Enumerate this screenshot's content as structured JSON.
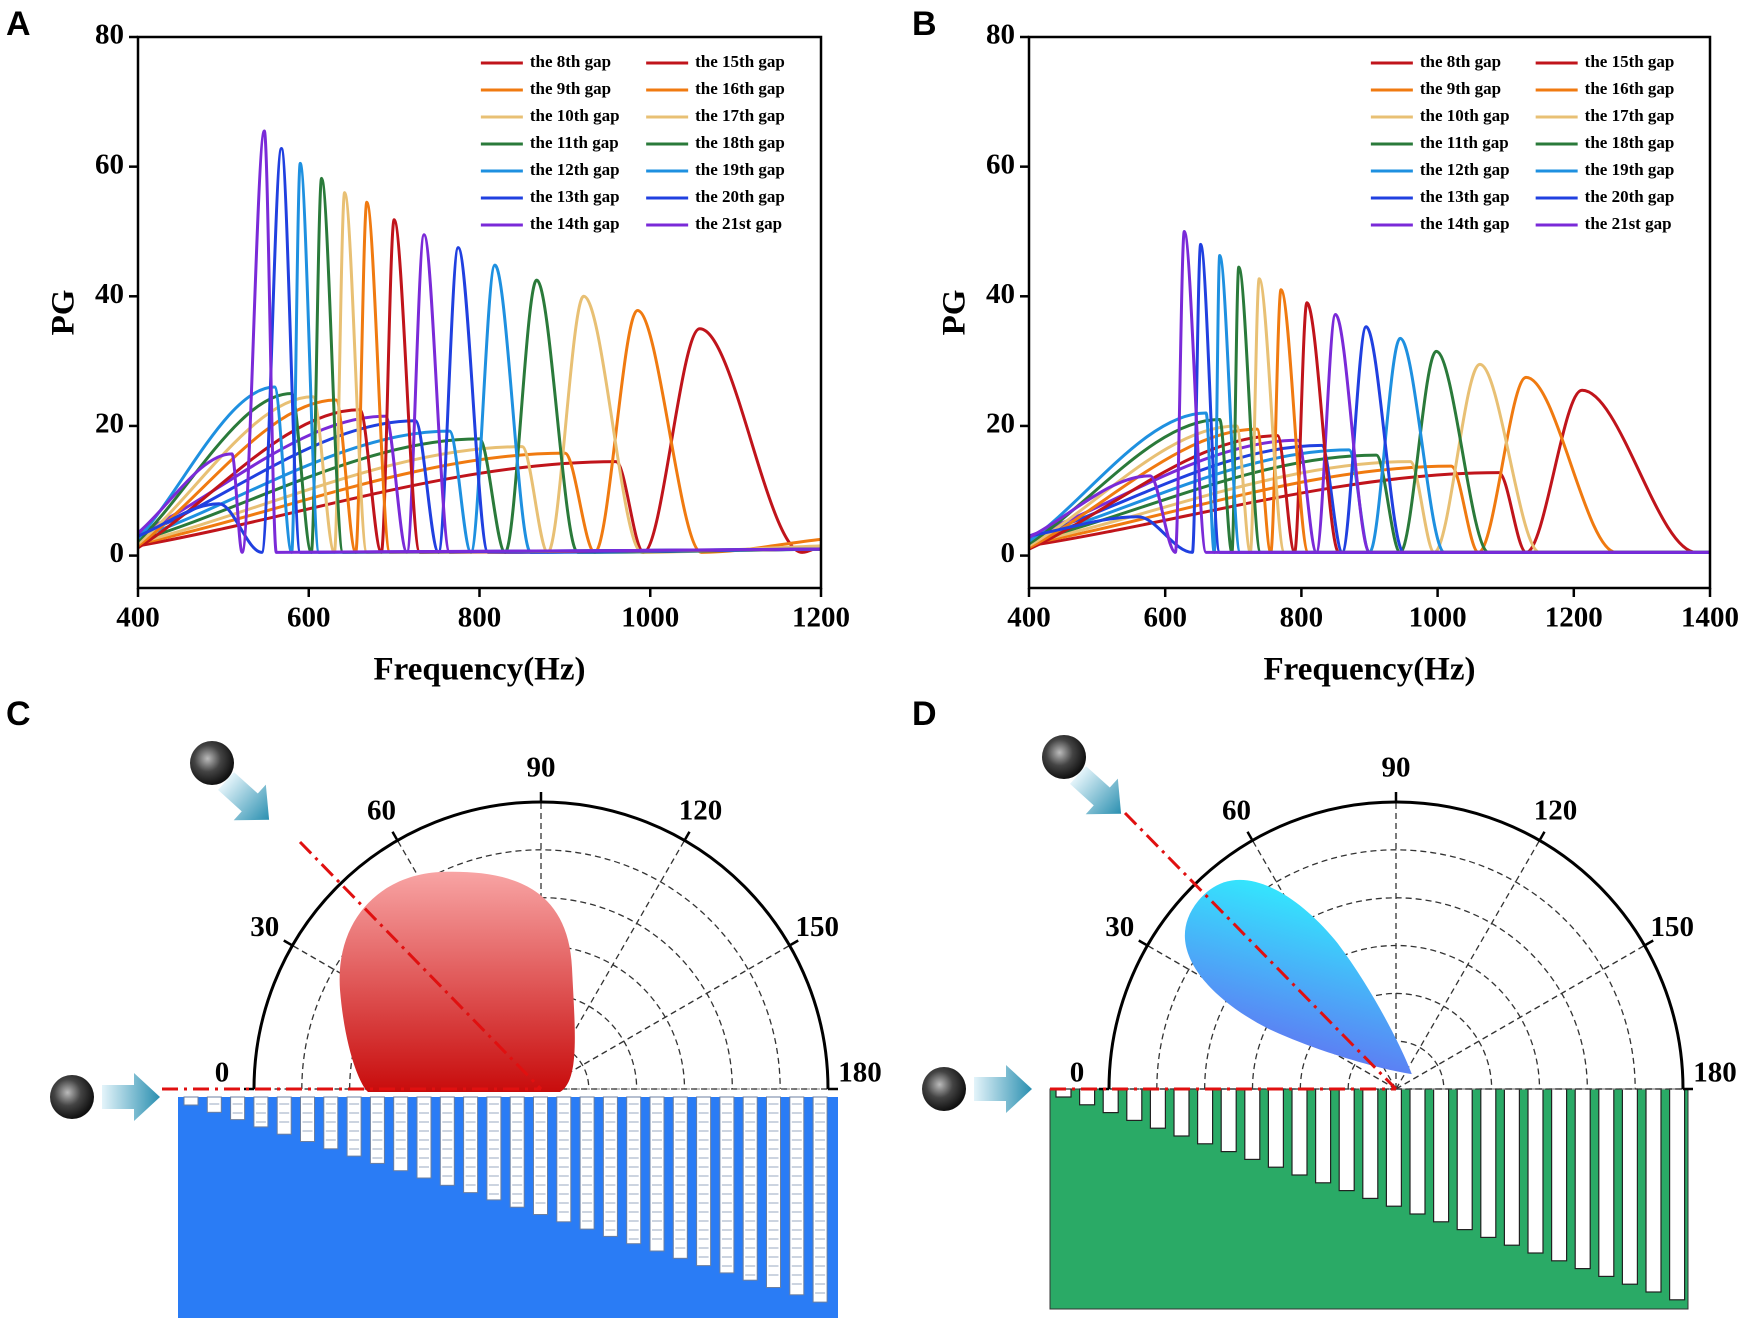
{
  "chart_data": [
    {
      "type": "line",
      "label": "A",
      "xlabel": "Frequency(Hz)",
      "ylabel": "PG",
      "xlim": [
        400,
        1200
      ],
      "ylim": [
        -5,
        80
      ],
      "xticks": [
        400,
        600,
        800,
        1000,
        1200
      ],
      "yticks": [
        0,
        20,
        40,
        60,
        80
      ],
      "series": [
        {
          "name": "the 8th gap",
          "color": "#c0141b",
          "x": [
            400,
            960,
            992,
            1058,
            1178,
            1200
          ],
          "values": [
            1.5,
            14.5,
            0.5,
            35,
            0.5,
            1.5
          ]
        },
        {
          "name": "the 9th gap",
          "color": "#f07a10",
          "x": [
            400,
            900,
            935,
            985,
            1060,
            1200
          ],
          "values": [
            1.8,
            15.8,
            0.5,
            37.8,
            0.5,
            2.5
          ]
        },
        {
          "name": "the 10th gap",
          "color": "#e8c074",
          "x": [
            400,
            850,
            880,
            922,
            990,
            1200
          ],
          "values": [
            2,
            16.8,
            0.5,
            40,
            0.5,
            1.5
          ]
        },
        {
          "name": "the 11th gap",
          "color": "#2a7a3a",
          "x": [
            400,
            800,
            830,
            867,
            915,
            1200
          ],
          "values": [
            2.3,
            18,
            0.5,
            42.5,
            0.5,
            1
          ]
        },
        {
          "name": "the 12th gap",
          "color": "#1e90e0",
          "x": [
            400,
            765,
            790,
            818,
            860,
            1200
          ],
          "values": [
            2.7,
            19.2,
            0.5,
            44.8,
            0.5,
            1
          ]
        },
        {
          "name": "the 13th gap",
          "color": "#2040e0",
          "x": [
            400,
            725,
            752,
            775,
            810,
            1200
          ],
          "values": [
            3,
            20.8,
            0.5,
            47.5,
            0.5,
            1
          ]
        },
        {
          "name": "the 14th gap",
          "color": "#7a2ad8",
          "x": [
            400,
            690,
            715,
            735,
            765,
            1200
          ],
          "values": [
            3.3,
            21.5,
            0.5,
            49.5,
            0.5,
            1
          ]
        },
        {
          "name": "the 15th gap",
          "color": "#c0141b",
          "x": [
            400,
            660,
            685,
            700,
            730,
            1200
          ],
          "values": [
            1.2,
            22.5,
            0.5,
            51.8,
            0.5,
            1
          ]
        },
        {
          "name": "the 16th gap",
          "color": "#f07a10",
          "x": [
            400,
            632,
            655,
            668,
            695,
            1200
          ],
          "values": [
            1.5,
            24,
            0.5,
            54.5,
            0.5,
            1
          ]
        },
        {
          "name": "the 17th gap",
          "color": "#e8c074",
          "x": [
            400,
            605,
            630,
            642,
            668,
            1200
          ],
          "values": [
            1.8,
            24.5,
            0.5,
            56,
            0.5,
            1
          ]
        },
        {
          "name": "the 18th gap",
          "color": "#2a7a3a",
          "x": [
            400,
            580,
            603,
            615,
            640,
            1200
          ],
          "values": [
            2.2,
            25,
            0.5,
            58.2,
            0.5,
            1
          ]
        },
        {
          "name": "the 19th gap",
          "color": "#1e90e0",
          "x": [
            400,
            560,
            580,
            590,
            612,
            1200
          ],
          "values": [
            2.6,
            26,
            0.5,
            60.5,
            0.5,
            1
          ]
        },
        {
          "name": "the 20th gap",
          "color": "#2040e0",
          "x": [
            400,
            495,
            545,
            568,
            590,
            1200
          ],
          "values": [
            3,
            8,
            0.5,
            62.8,
            0.5,
            1
          ]
        },
        {
          "name": "the 21st gap",
          "color": "#7a2ad8",
          "x": [
            400,
            510,
            522,
            548,
            562,
            1200
          ],
          "values": [
            3.5,
            15.7,
            0.5,
            65.5,
            0.5,
            1
          ]
        }
      ]
    },
    {
      "type": "line",
      "label": "B",
      "xlabel": "Frequency(Hz)",
      "ylabel": "PG",
      "xlim": [
        400,
        1400
      ],
      "ylim": [
        -5,
        80
      ],
      "xticks": [
        400,
        600,
        800,
        1000,
        1200,
        1400
      ],
      "yticks": [
        0,
        20,
        40,
        60,
        80
      ],
      "series": [
        {
          "name": "the 8th gap",
          "color": "#c0141b",
          "x": [
            400,
            1090,
            1130,
            1212,
            1380,
            1400
          ],
          "values": [
            1.5,
            12.8,
            0.5,
            25.5,
            0.5,
            0.5
          ]
        },
        {
          "name": "the 9th gap",
          "color": "#f07a10",
          "x": [
            400,
            1020,
            1060,
            1130,
            1262,
            1400
          ],
          "values": [
            1.8,
            13.8,
            0.5,
            27.5,
            0.5,
            0.5
          ]
        },
        {
          "name": "the 10th gap",
          "color": "#e8c074",
          "x": [
            400,
            960,
            995,
            1062,
            1150,
            1400
          ],
          "values": [
            2,
            14.5,
            0.5,
            29.5,
            0.5,
            0.5
          ]
        },
        {
          "name": "the 11th gap",
          "color": "#2a7a3a",
          "x": [
            400,
            910,
            945,
            998,
            1075,
            1400
          ],
          "values": [
            2.2,
            15.5,
            0.5,
            31.5,
            0.5,
            0.5
          ]
        },
        {
          "name": "the 12th gap",
          "color": "#1e90e0",
          "x": [
            400,
            870,
            900,
            945,
            1010,
            1400
          ],
          "values": [
            2.5,
            16.3,
            0.5,
            33.5,
            0.5,
            0.5
          ]
        },
        {
          "name": "the 13th gap",
          "color": "#2040e0",
          "x": [
            400,
            830,
            860,
            895,
            950,
            1400
          ],
          "values": [
            2.8,
            17,
            0.5,
            35.3,
            0.5,
            0.5
          ]
        },
        {
          "name": "the 14th gap",
          "color": "#7a2ad8",
          "x": [
            400,
            795,
            822,
            850,
            900,
            1400
          ],
          "values": [
            3,
            17.8,
            0.5,
            37.2,
            0.5,
            0.5
          ]
        },
        {
          "name": "the 15th gap",
          "color": "#c0141b",
          "x": [
            400,
            765,
            790,
            808,
            855,
            1400
          ],
          "values": [
            1,
            18.5,
            0.5,
            39,
            0.5,
            0.5
          ]
        },
        {
          "name": "the 16th gap",
          "color": "#f07a10",
          "x": [
            400,
            735,
            755,
            770,
            810,
            1400
          ],
          "values": [
            1.2,
            19.5,
            0.5,
            41,
            0.5,
            0.5
          ]
        },
        {
          "name": "the 17th gap",
          "color": "#e8c074",
          "x": [
            400,
            705,
            725,
            738,
            775,
            1400
          ],
          "values": [
            1.5,
            20,
            0.5,
            42.7,
            0.5,
            0.5
          ]
        },
        {
          "name": "the 18th gap",
          "color": "#2a7a3a",
          "x": [
            400,
            680,
            698,
            708,
            740,
            1400
          ],
          "values": [
            1.8,
            21,
            0.5,
            44.5,
            0.5,
            0.5
          ]
        },
        {
          "name": "the 19th gap",
          "color": "#1e90e0",
          "x": [
            400,
            660,
            672,
            680,
            710,
            1400
          ],
          "values": [
            2.2,
            22,
            0.5,
            46.3,
            0.5,
            0.5
          ]
        },
        {
          "name": "the 20th gap",
          "color": "#2040e0",
          "x": [
            400,
            560,
            640,
            652,
            680,
            1400
          ],
          "values": [
            3,
            6,
            0.5,
            48,
            0.5,
            0.5
          ]
        },
        {
          "name": "the 21st gap",
          "color": "#7a2ad8",
          "x": [
            400,
            578,
            615,
            628,
            660,
            1400
          ],
          "values": [
            2.8,
            12.3,
            0.5,
            50,
            0.5,
            0.5
          ]
        }
      ]
    },
    {
      "type": "polar",
      "label": "C",
      "thetalim": [
        0,
        180
      ],
      "thetaticks": [
        0,
        30,
        60,
        90,
        120,
        150,
        180
      ]
    },
    {
      "type": "polar",
      "label": "D",
      "thetalim": [
        0,
        180
      ],
      "thetaticks": [
        0,
        30,
        60,
        90,
        120,
        150,
        180
      ]
    }
  ]
}
